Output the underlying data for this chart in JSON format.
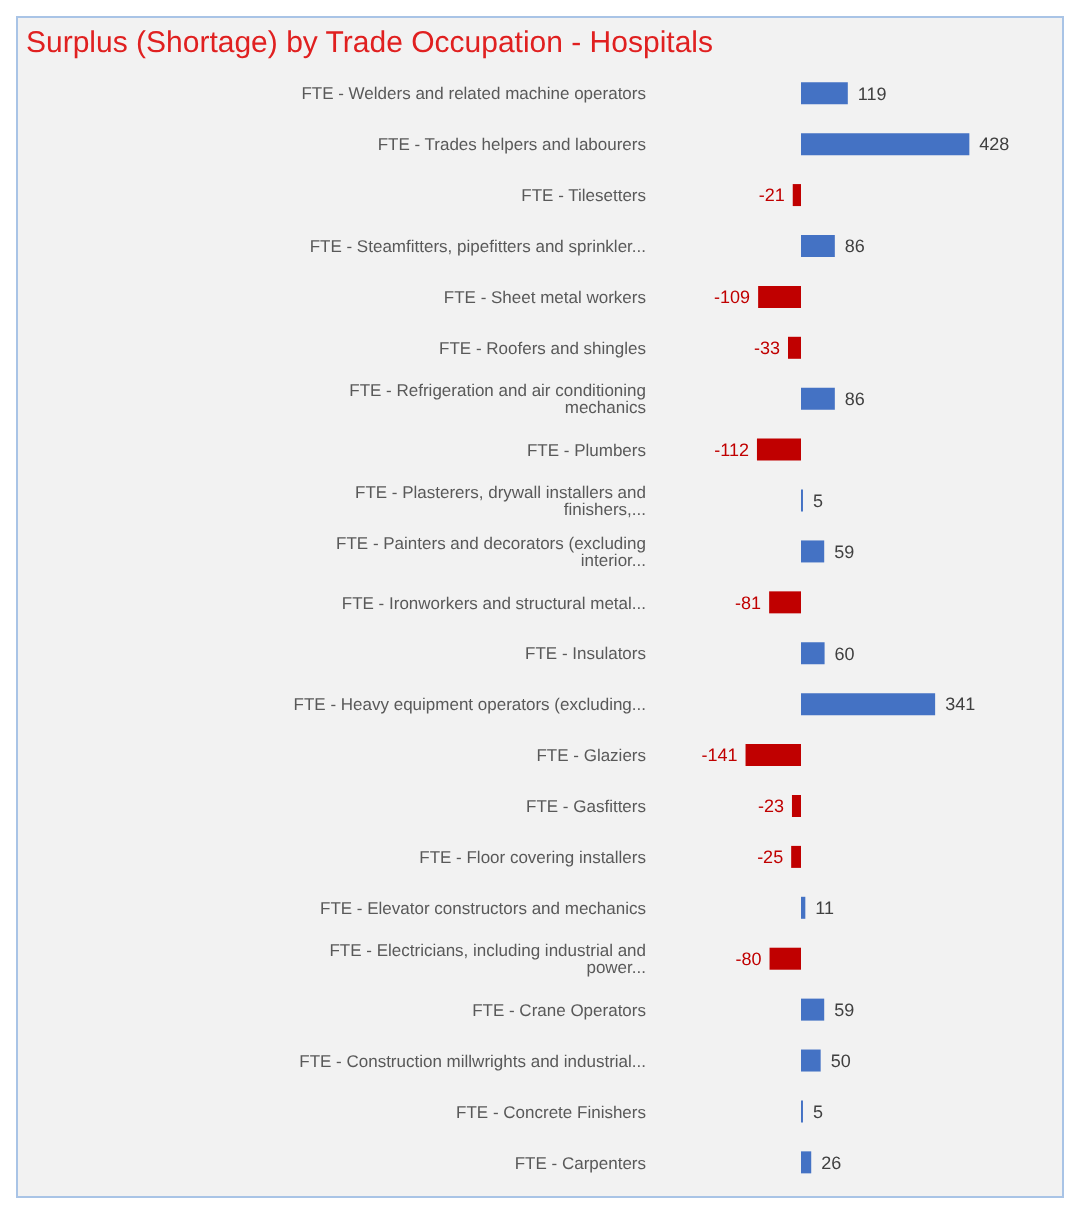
{
  "chart_data": {
    "type": "bar",
    "orientation": "horizontal",
    "title": "Surplus (Shortage) by Trade Occupation - Hospitals",
    "categories": [
      "FTE - Welders and related machine operators",
      "FTE - Trades helpers and labourers",
      "FTE - Tilesetters",
      "FTE - Steamfitters, pipefitters and sprinkler...",
      "FTE - Sheet metal workers",
      "FTE - Roofers and shingles",
      "FTE - Refrigeration and air conditioning mechanics",
      "FTE - Plumbers",
      "FTE - Plasterers, drywall installers and finishers,...",
      "FTE - Painters and decorators (excluding interior...",
      "FTE - Ironworkers and structural metal...",
      "FTE - Insulators",
      "FTE - Heavy equipment operators (excluding...",
      "FTE - Glaziers",
      "FTE - Gasfitters",
      "FTE - Floor covering installers",
      "FTE - Elevator constructors and mechanics",
      "FTE - Electricians, including industrial and power...",
      "FTE - Crane Operators",
      "FTE - Construction millwrights and industrial...",
      "FTE - Concrete Finishers",
      "FTE - Carpenters"
    ],
    "values": [
      119,
      428,
      -21,
      86,
      -109,
      -33,
      86,
      -112,
      5,
      59,
      -81,
      60,
      341,
      -141,
      -23,
      -25,
      11,
      -80,
      59,
      50,
      5,
      26
    ],
    "colors": [
      "#4472c4",
      "#4472c4",
      "#c00000",
      "#4472c4",
      "#c00000",
      "#c00000",
      "#4472c4",
      "#c00000",
      "#4472c4",
      "#4472c4",
      "#c00000",
      "#4472c4",
      "#4472c4",
      "#c00000",
      "#c00000",
      "#c00000",
      "#4472c4",
      "#c00000",
      "#4472c4",
      "#4472c4",
      "#4472c4",
      "#4472c4"
    ],
    "data_labels": true
  }
}
